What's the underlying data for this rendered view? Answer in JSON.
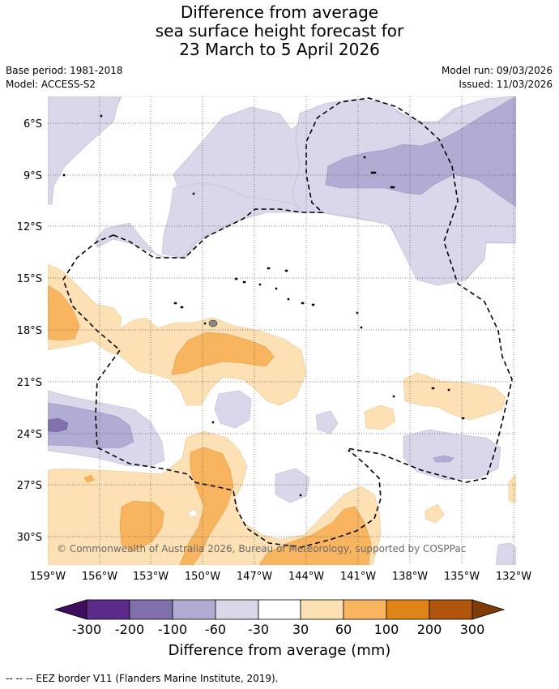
{
  "title": {
    "line1": "Difference from average",
    "line2": "sea surface height forecast for",
    "line3": "23 March to 5 April 2026"
  },
  "meta": {
    "base_period": "Base period: 1981-2018",
    "model": "Model: ACCESS-S2",
    "model_run": "Model run: 09/03/2026",
    "issued": "Issued: 11/03/2026"
  },
  "map": {
    "lat_labels": [
      "6°S",
      "9°S",
      "12°S",
      "15°S",
      "18°S",
      "21°S",
      "24°S",
      "27°S",
      "30°S"
    ],
    "lon_labels": [
      "159°W",
      "156°W",
      "153°W",
      "150°W",
      "147°W",
      "144°W",
      "141°W",
      "138°W",
      "135°W",
      "132°W"
    ],
    "copyright": "© Commonwealth of Australia 2026, Bureau of Meteorology, supported by COSPPac"
  },
  "colorbar": {
    "ticks": [
      "-300",
      "-200",
      "-100",
      "-60",
      "-30",
      "30",
      "60",
      "100",
      "200",
      "300"
    ],
    "colors": [
      "#3f0d5e",
      "#5e2a8a",
      "#8170ac",
      "#b1acd3",
      "#d8d8ea",
      "#ffffff",
      "#fde0b4",
      "#f9b460",
      "#e08417",
      "#b0550c",
      "#7f3b08"
    ],
    "label": "Difference from average (mm)"
  },
  "legend_note": "--  --  -- EEZ border V11 (Flanders Marine Institute, 2019)."
}
